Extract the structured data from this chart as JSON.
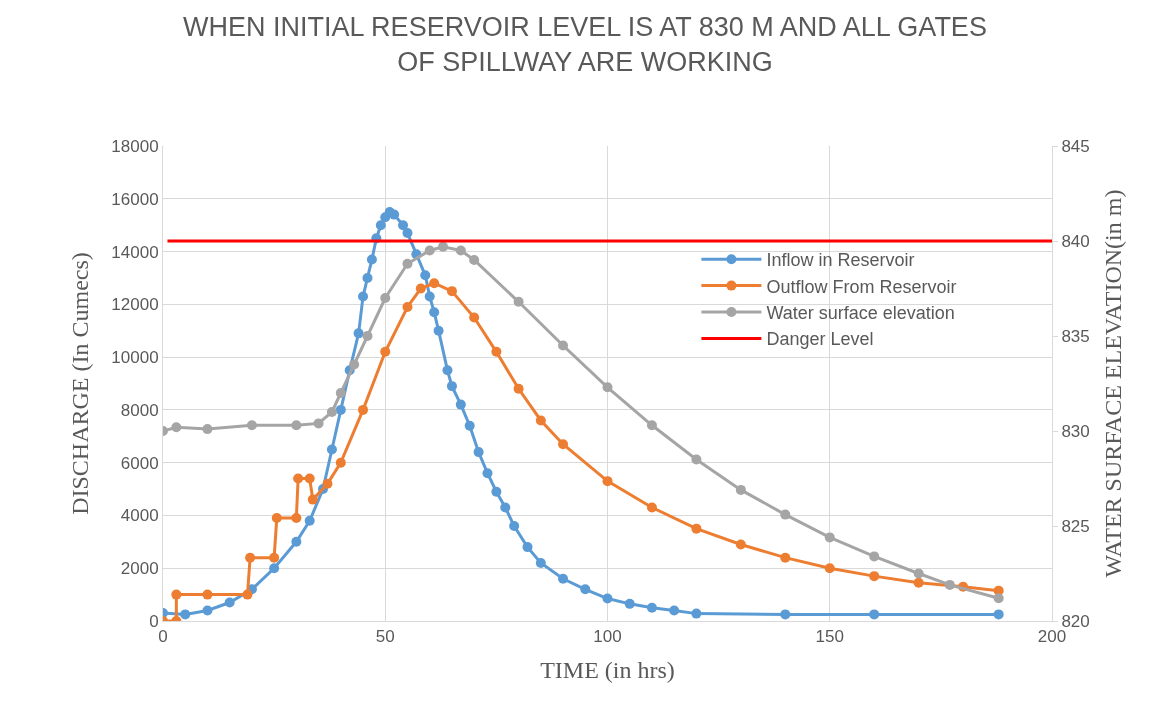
{
  "chart_data": {
    "type": "line",
    "title": "WHEN INITIAL RESERVOIR LEVEL IS AT 830 M AND ALL GATES OF SPILLWAY ARE WORKING",
    "xlabel": "TIME (in hrs)",
    "ylabel": "DISCHARGE (In Cumecs)",
    "y2label": "WATER SURFACE ELEVATION(in m)",
    "xlim": [
      0,
      200
    ],
    "xticks": [
      0,
      50,
      100,
      150,
      200
    ],
    "ylim": [
      0,
      18000
    ],
    "yticks": [
      0,
      2000,
      4000,
      6000,
      8000,
      10000,
      12000,
      14000,
      16000,
      18000
    ],
    "y2lim": [
      820,
      845
    ],
    "y2ticks": [
      820,
      825,
      830,
      835,
      840,
      845
    ],
    "grid": true,
    "legend": "right",
    "marker": "circle",
    "series": [
      {
        "name": "Inflow in Reservoir",
        "color": "#5b9bd5",
        "x": [
          0,
          5,
          10,
          15,
          20,
          25,
          30,
          33,
          36,
          38,
          40,
          42,
          44,
          45,
          46,
          47,
          48,
          49,
          50,
          51,
          52,
          54,
          55,
          57,
          59,
          60,
          61,
          62,
          64,
          65,
          67,
          69,
          71,
          73,
          75,
          77,
          79,
          82,
          85,
          90,
          95,
          100,
          105,
          110,
          115,
          120,
          140,
          160,
          188
        ],
        "values": [
          300,
          250,
          400,
          700,
          1200,
          2000,
          3000,
          3800,
          5000,
          6500,
          8000,
          9500,
          10900,
          12300,
          13000,
          13700,
          14500,
          15000,
          15300,
          15500,
          15400,
          15000,
          14700,
          13900,
          13100,
          12300,
          11700,
          11000,
          9500,
          8900,
          8200,
          7400,
          6400,
          5600,
          4900,
          4300,
          3600,
          2800,
          2200,
          1600,
          1200,
          850,
          650,
          500,
          400,
          280,
          250,
          250,
          250
        ]
      },
      {
        "name": "Outflow From Reservoir",
        "color": "#ed7d31",
        "x": [
          0,
          3,
          3,
          10,
          19,
          19.6,
          25,
          25.6,
          30,
          30.4,
          33,
          33.7,
          37,
          40,
          45,
          50,
          55,
          58,
          61,
          65,
          70,
          75,
          80,
          85,
          90,
          100,
          110,
          120,
          130,
          140,
          150,
          160,
          170,
          180,
          188
        ],
        "values": [
          0,
          0,
          1000,
          1000,
          1000,
          2400,
          2400,
          3900,
          3900,
          5400,
          5400,
          4600,
          5200,
          6000,
          8000,
          10200,
          11900,
          12600,
          12800,
          12500,
          11500,
          10200,
          8800,
          7600,
          6700,
          5300,
          4300,
          3500,
          2900,
          2400,
          2000,
          1700,
          1450,
          1300,
          1150
        ]
      },
      {
        "name": "Water surface elevation",
        "color": "#a5a5a5",
        "axis": "y2",
        "x": [
          0,
          3,
          10,
          20,
          30,
          35,
          38,
          40,
          43,
          46,
          50,
          55,
          60,
          63,
          67,
          70,
          80,
          90,
          100,
          110,
          120,
          130,
          140,
          150,
          160,
          170,
          177,
          188
        ],
        "values": [
          830.0,
          830.2,
          830.1,
          830.3,
          830.3,
          830.4,
          831,
          832,
          833.5,
          835,
          837,
          838.8,
          839.5,
          839.7,
          839.5,
          839,
          836.8,
          834.5,
          832.3,
          830.3,
          828.5,
          826.9,
          825.6,
          824.4,
          823.4,
          822.5,
          821.9,
          821.2
        ]
      }
    ],
    "ref_lines": [
      {
        "axis": "y2",
        "value": 840,
        "label": "Danger Level",
        "color": "#ff0000",
        "line_style": "solid"
      }
    ]
  }
}
